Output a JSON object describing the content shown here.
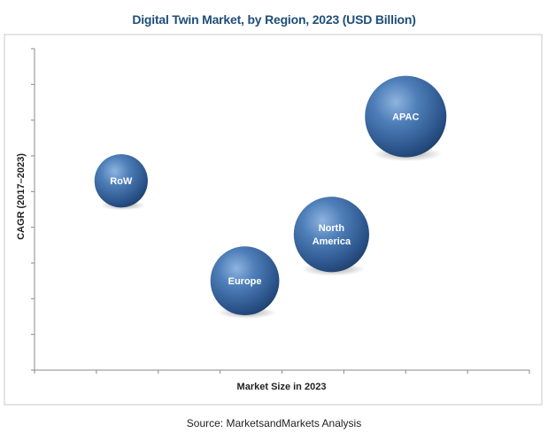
{
  "title": "Digital Twin Market, by Region, 2023 (USD Billion)",
  "source": "Source: MarketsandMarkets Analysis",
  "chart_data": {
    "type": "scatter",
    "subtype": "bubble",
    "title": "Digital Twin Market, by Region, 2023 (USD Billion)",
    "xlabel": "Market Size in 2023",
    "ylabel": "CAGR (2017–2023)",
    "xlim": [
      0,
      8
    ],
    "ylim": [
      0,
      9
    ],
    "x_ticks_shown": 8,
    "y_ticks_shown": 9,
    "grid": false,
    "legend": "none",
    "bubble_color": "#2e5f98",
    "points": [
      {
        "label": "RoW",
        "x": 1.4,
        "y": 5.3,
        "size": 0.6
      },
      {
        "label": "Europe",
        "x": 3.4,
        "y": 2.5,
        "size": 1.0
      },
      {
        "label": "North America",
        "label_lines": [
          "North",
          "America"
        ],
        "x": 4.8,
        "y": 3.8,
        "size": 1.2
      },
      {
        "label": "APAC",
        "x": 6.0,
        "y": 7.1,
        "size": 1.4
      }
    ]
  }
}
